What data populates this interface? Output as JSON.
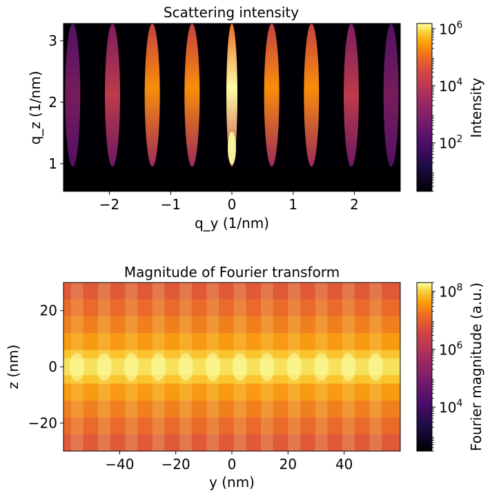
{
  "chart_data": [
    {
      "type": "heatmap",
      "title": "Scattering intensity",
      "xlabel": "q_y (1/nm)",
      "ylabel": "q_z (1/nm)",
      "xlim": [
        -2.75,
        2.75
      ],
      "ylim": [
        0.55,
        3.28
      ],
      "xticks": [
        {
          "value": -2,
          "label": "−2"
        },
        {
          "value": -1,
          "label": "−1"
        },
        {
          "value": 0,
          "label": "0"
        },
        {
          "value": 1,
          "label": "1"
        },
        {
          "value": 2,
          "label": "2"
        }
      ],
      "yticks": [
        {
          "value": 1,
          "label": "1"
        },
        {
          "value": 2,
          "label": "2"
        },
        {
          "value": 3,
          "label": "3"
        }
      ],
      "colormap": "inferno",
      "colorbar": {
        "label": "Intensity",
        "scale": "log",
        "range": [
          2,
          1500000
        ],
        "ticks": [
          {
            "value": 100,
            "base": "10",
            "exp": "2"
          },
          {
            "value": 10000,
            "base": "10",
            "exp": "4"
          },
          {
            "value": 1000000,
            "base": "10",
            "exp": "6"
          }
        ]
      },
      "features": {
        "peak_qy": [
          -2.6,
          -1.95,
          -1.3,
          -0.65,
          0,
          0.65,
          1.3,
          1.95,
          2.6
        ],
        "brightest_peak": {
          "qy": 0,
          "qz": 1.25
        }
      }
    },
    {
      "type": "heatmap",
      "title": "Magnitude of Fourier transform",
      "xlabel": "y (nm)",
      "ylabel": "z (nm)",
      "xlim": [
        -60,
        60
      ],
      "ylim": [
        -30,
        30
      ],
      "xticks": [
        {
          "value": -40,
          "label": "−40"
        },
        {
          "value": -20,
          "label": "−20"
        },
        {
          "value": 0,
          "label": "0"
        },
        {
          "value": 20,
          "label": "20"
        },
        {
          "value": 40,
          "label": "40"
        }
      ],
      "yticks": [
        {
          "value": -20,
          "label": "−20"
        },
        {
          "value": 0,
          "label": "0"
        },
        {
          "value": 20,
          "label": "20"
        }
      ],
      "colormap": "inferno",
      "colorbar": {
        "label": "Fourier magnitude (a.u.)",
        "scale": "log",
        "range": [
          300,
          200000000
        ],
        "ticks": [
          {
            "value": 10000,
            "base": "10",
            "exp": "4"
          },
          {
            "value": 1000000,
            "base": "10",
            "exp": "6"
          },
          {
            "value": 100000000,
            "base": "10",
            "exp": "8"
          }
        ]
      },
      "features": {
        "period_y": 9.67,
        "bright_band_z": 0
      }
    }
  ]
}
